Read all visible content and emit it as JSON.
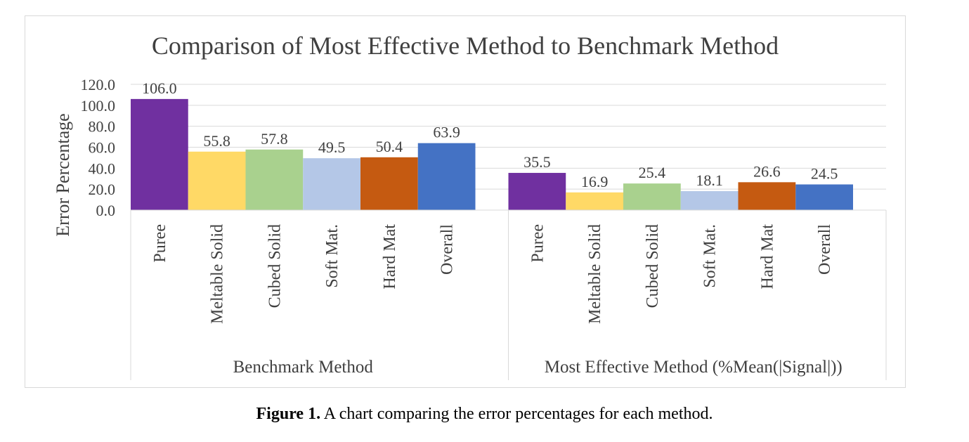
{
  "chart_data": {
    "type": "bar",
    "title": "Comparison of Most Effective Method to Benchmark Method",
    "xlabel": "",
    "ylabel": "Error Percentage",
    "ylim": [
      0,
      120
    ],
    "yticks": [
      "0.0",
      "20.0",
      "40.0",
      "60.0",
      "80.0",
      "100.0",
      "120.0"
    ],
    "grid": true,
    "legend": "none",
    "groups": [
      {
        "name": "Benchmark Method",
        "categories": [
          "Puree",
          "Meltable Solid",
          "Cubed Solid",
          "Soft Mat.",
          "Hard Mat",
          "Overall"
        ],
        "values": [
          106.0,
          55.8,
          57.8,
          49.5,
          50.4,
          63.9
        ],
        "labels": [
          "106.0",
          "55.8",
          "57.8",
          "49.5",
          "50.4",
          "63.9"
        ]
      },
      {
        "name": "Most Effective Method (%Mean(|Signal|))",
        "categories": [
          "Puree",
          "Meltable Solid",
          "Cubed Solid",
          "Soft Mat.",
          "Hard Mat",
          "Overall"
        ],
        "values": [
          35.5,
          16.9,
          25.4,
          18.1,
          26.6,
          24.5
        ],
        "labels": [
          "35.5",
          "16.9",
          "25.4",
          "18.1",
          "26.6",
          "24.5"
        ]
      }
    ],
    "colors": [
      "#7030a0",
      "#ffd966",
      "#a9d18e",
      "#b4c7e7",
      "#c55a11",
      "#4472c4"
    ]
  },
  "caption": {
    "label": "Figure 1.",
    "text": " A chart comparing the error percentages for each method."
  }
}
